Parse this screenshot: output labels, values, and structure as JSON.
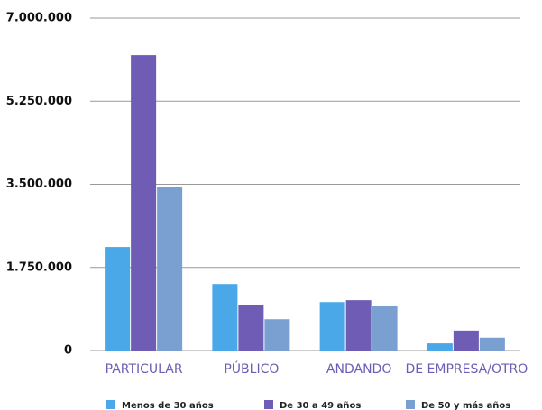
{
  "chart_data": {
    "type": "bar",
    "categories": [
      "PARTICULAR",
      "PÚBLICO",
      "ANDANDO",
      "DE EMPRESA/OTRO"
    ],
    "series": [
      {
        "name": "Menos de 30 años",
        "color": "#4aa8e8",
        "values": [
          2180000,
          1400000,
          1020000,
          150000
        ]
      },
      {
        "name": "De 30 a 49 años",
        "color": "#6e5cb5",
        "values": [
          6220000,
          950000,
          1060000,
          420000
        ]
      },
      {
        "name": "De 50 y más años",
        "color": "#7aa0d2",
        "values": [
          3450000,
          660000,
          930000,
          270000
        ]
      }
    ],
    "ylim": [
      0,
      7000000
    ],
    "yticks": [
      0,
      {
        "value": 1750000,
        "label": "1.750.000"
      },
      {
        "value": 3500000,
        "label": "3.500.000"
      },
      {
        "value": 5250000,
        "label": "5.250.000"
      },
      {
        "value": 7000000,
        "label": "7.000.000"
      }
    ],
    "grid": true
  }
}
